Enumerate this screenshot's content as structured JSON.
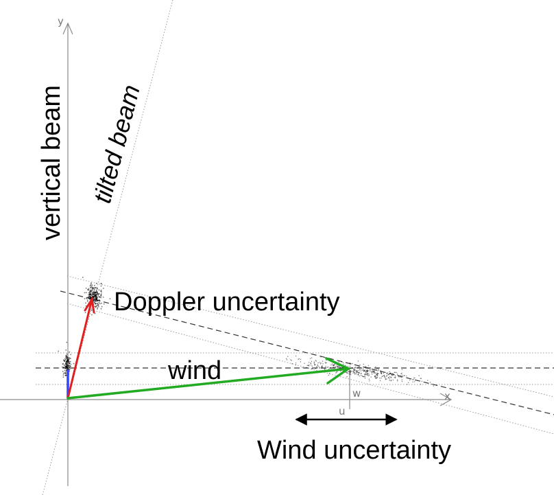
{
  "labels": {
    "vertical_beam": "vertical beam",
    "tilted_beam": "tilted beam",
    "doppler_uncertainty": "Doppler uncertainty",
    "wind": "wind",
    "wind_uncertainty": "Wind uncertainty",
    "axis_x": "x",
    "axis_y": "y",
    "tick_u": "u",
    "tick_w": "w"
  },
  "colors": {
    "wind_vector": "#22aa22",
    "doppler_vector": "#e02020",
    "vertical_vector": "#3344ff",
    "axes": "#999999",
    "scatter": "#000000"
  }
}
